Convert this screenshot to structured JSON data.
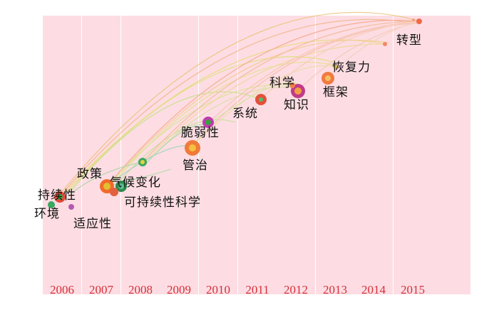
{
  "years": [
    "2006",
    "2007",
    "2008",
    "2009",
    "2010",
    "2011",
    "2012",
    "2013",
    "2014",
    "2015"
  ],
  "keywords": [
    {
      "id": "sustainability",
      "label": "持续性"
    },
    {
      "id": "environment",
      "label": "环境"
    },
    {
      "id": "adaptability",
      "label": "适应性"
    },
    {
      "id": "policy",
      "label": "政策"
    },
    {
      "id": "climate-change",
      "label": "气候变化"
    },
    {
      "id": "sustainability-science",
      "label": "可持续性科学"
    },
    {
      "id": "governance",
      "label": "管治"
    },
    {
      "id": "vulnerability",
      "label": "脆弱性"
    },
    {
      "id": "system",
      "label": "系统"
    },
    {
      "id": "science",
      "label": "科学"
    },
    {
      "id": "knowledge",
      "label": "知识"
    },
    {
      "id": "resilience",
      "label": "恢复力"
    },
    {
      "id": "framework",
      "label": "框架"
    },
    {
      "id": "transformation",
      "label": "转型"
    }
  ],
  "colors": {
    "stripe": "#fddde3",
    "year": "#d4303a"
  }
}
